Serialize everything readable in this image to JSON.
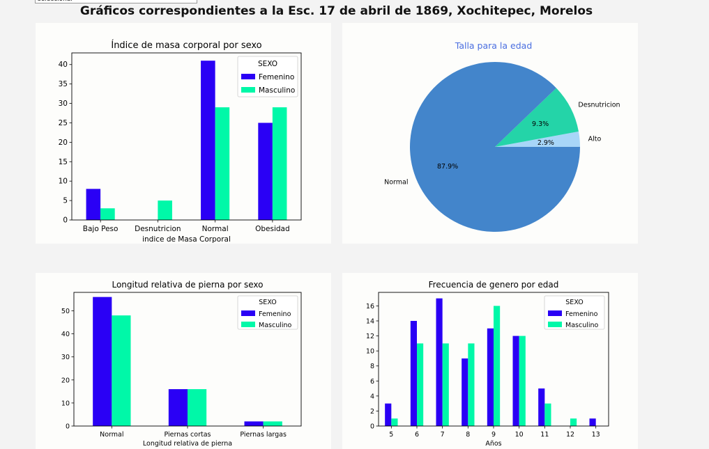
{
  "page": {
    "select_text": "seleccionar",
    "title": "Gráficos correspondientes a la Esc. 17 de abril de 1869, Xochitepec, Morelos"
  },
  "colors": {
    "femenino": "#2a00f5",
    "masculino": "#00f8a8"
  },
  "chart_data": [
    {
      "type": "bar",
      "title": "Índice de masa corporal por sexo",
      "xlabel": "indice de Masa Corporal",
      "ylabel": "",
      "categories": [
        "Bajo Peso",
        "Desnutricion",
        "Normal",
        "Obesidad"
      ],
      "series": [
        {
          "name": "Femenino",
          "values": [
            8,
            0,
            41,
            25
          ]
        },
        {
          "name": "Masculino",
          "values": [
            3,
            5,
            29,
            29
          ]
        }
      ],
      "yticks": [
        0,
        5,
        10,
        15,
        20,
        25,
        30,
        35,
        40
      ],
      "ylim": [
        0,
        43
      ],
      "legend_title": "SEXO",
      "legend_position": "top-right",
      "grid": false
    },
    {
      "type": "pie",
      "title": "Talla para la edad",
      "labels": [
        "Normal",
        "Desnutricion",
        "Alto"
      ],
      "values": [
        87.9,
        9.3,
        2.9
      ],
      "value_labels": [
        "87.9%",
        "9.3%",
        "2.9%"
      ],
      "colors": [
        "#4385cb",
        "#24d4a8",
        "#a8d6f8"
      ]
    },
    {
      "type": "bar",
      "title": "Longitud relativa de pierna por sexo",
      "xlabel": "Longitud relativa de pierna",
      "ylabel": "",
      "categories": [
        "Normal",
        "Piernas cortas",
        "Piernas largas"
      ],
      "series": [
        {
          "name": "Femenino",
          "values": [
            56,
            16,
            2
          ]
        },
        {
          "name": "Masculino",
          "values": [
            48,
            16,
            2
          ]
        }
      ],
      "yticks": [
        0,
        10,
        20,
        30,
        40,
        50
      ],
      "ylim": [
        0,
        58
      ],
      "legend_title": "SEXO",
      "legend_position": "top-right",
      "grid": false
    },
    {
      "type": "bar",
      "title": "Frecuencia de genero por edad",
      "xlabel": "Años",
      "ylabel": "",
      "categories": [
        "5",
        "6",
        "7",
        "8",
        "9",
        "10",
        "11",
        "12",
        "13"
      ],
      "series": [
        {
          "name": "Femenino",
          "values": [
            3,
            14,
            17,
            9,
            13,
            12,
            5,
            0,
            1
          ]
        },
        {
          "name": "Masculino",
          "values": [
            1,
            11,
            11,
            11,
            16,
            12,
            3,
            1,
            0
          ]
        }
      ],
      "yticks": [
        0,
        2,
        4,
        6,
        8,
        10,
        12,
        14,
        16
      ],
      "ylim": [
        0,
        17.8
      ],
      "legend_title": "SEXO",
      "legend_position": "top-right",
      "grid": false
    }
  ]
}
